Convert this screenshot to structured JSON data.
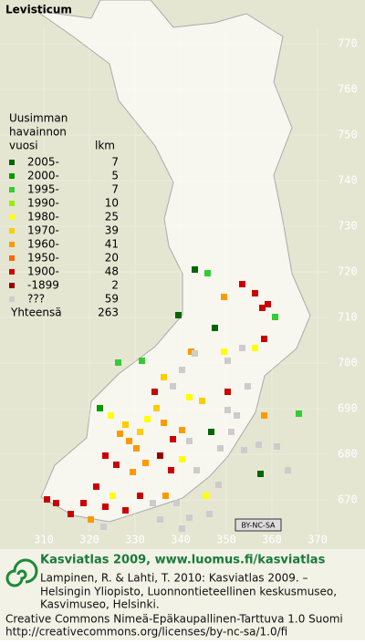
{
  "title": "Levisticum",
  "legend": {
    "heading": [
      "Uusimman",
      "havainnon",
      "vuosi"
    ],
    "count_heading": "lkm",
    "rows": [
      {
        "label": "2005-",
        "count": 7,
        "color": "#006600"
      },
      {
        "label": "2000-",
        "count": 5,
        "color": "#009900"
      },
      {
        "label": "1995-",
        "count": 7,
        "color": "#33cc33"
      },
      {
        "label": "1990-",
        "count": 10,
        "color": "#99ee00"
      },
      {
        "label": "1980-",
        "count": 25,
        "color": "#ffff00"
      },
      {
        "label": "1970-",
        "count": 39,
        "color": "#ffcc00"
      },
      {
        "label": "1960-",
        "count": 41,
        "color": "#ff9900"
      },
      {
        "label": "1950-",
        "count": 20,
        "color": "#ff6600"
      },
      {
        "label": "1900-",
        "count": 48,
        "color": "#cc0000"
      },
      {
        "label": "-1899",
        "count": 2,
        "color": "#990000"
      },
      {
        "label": "???",
        "count": 59,
        "color": "#cccccc"
      }
    ],
    "total_label": "Yhteensä",
    "total": 263
  },
  "grid": {
    "y_labels": [
      770,
      760,
      750,
      740,
      730,
      720,
      710,
      700,
      690,
      680,
      670
    ],
    "x_labels": [
      310,
      320,
      330,
      340,
      350,
      360,
      370
    ]
  },
  "badge": "BY-NC-SA",
  "footer": {
    "title": "Kasviatlas 2009, www.luomus.fi/kasviatlas",
    "citation": [
      "Lampinen, R. & Lahti, T. 2010: Kasviatlas 2009. –",
      "Helsingin Yliopisto, Luonnontieteellinen keskusmuseo,",
      "Kasvimuseo, Helsinki."
    ],
    "license": [
      "Creative Commons Nimeä-Epäkaupallinen-Tarttuva 1.0 Suomi",
      "http://creativecommons.org/licenses/by-nc-sa/1.0/fi"
    ]
  }
}
